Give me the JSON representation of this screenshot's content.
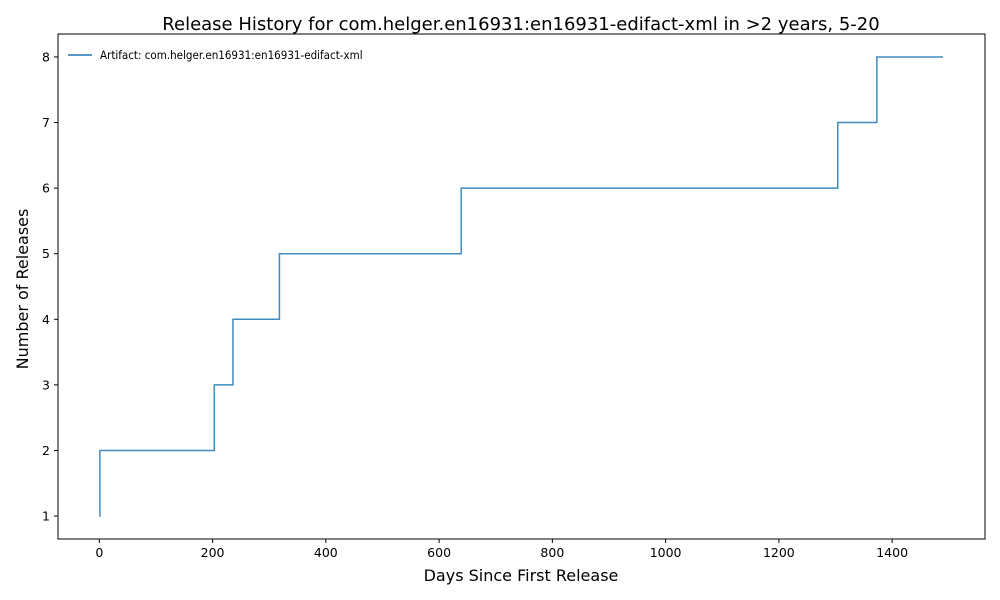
{
  "chart_data": {
    "type": "line",
    "title": "Release History for com.helger.en16931:en16931-edifact-xml in >2 years, 5-20",
    "xlabel": "Days Since First Release",
    "ylabel": "Number of Releases",
    "xlim": [
      -73,
      1564
    ],
    "ylim": [
      0.65,
      8.35
    ],
    "x_ticks": [
      0,
      200,
      400,
      600,
      800,
      1000,
      1200,
      1400
    ],
    "y_ticks": [
      1,
      2,
      3,
      4,
      5,
      6,
      7,
      8
    ],
    "grid": false,
    "legend_position": "top-left",
    "step": "post",
    "series": [
      {
        "name": "Artifact: com.helger.en16931:en16931-edifact-xml",
        "color": "#1f77b4",
        "x": [
          0,
          1,
          203,
          236,
          318,
          639,
          1304,
          1373,
          1490
        ],
        "y": [
          1,
          2,
          3,
          4,
          5,
          6,
          7,
          8,
          8
        ]
      }
    ]
  }
}
